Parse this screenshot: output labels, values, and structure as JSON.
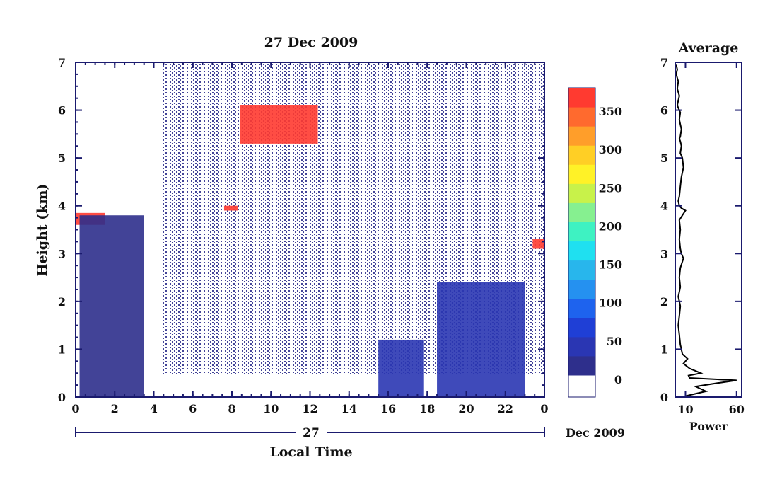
{
  "chart_data": [
    {
      "type": "heatmap",
      "title": "27 Dec 2009",
      "xlabel": "Local Time",
      "ylabel": "Height (km)",
      "x_ticks": [
        "0",
        "2",
        "4",
        "6",
        "8",
        "10",
        "12",
        "14",
        "16",
        "18",
        "20",
        "22",
        "0"
      ],
      "y_ticks": [
        "0",
        "1",
        "2",
        "3",
        "4",
        "5",
        "6",
        "7"
      ],
      "xlim": [
        0,
        24
      ],
      "ylim": [
        0,
        7
      ],
      "date_bar": {
        "day_label": "27",
        "month_label": "Dec 2009"
      },
      "colorbar": {
        "tick_labels": [
          "0",
          "50",
          "100",
          "150",
          "200",
          "250",
          "300",
          "350"
        ],
        "range": [
          0,
          375
        ],
        "colors": [
          "#2e2f8c",
          "#2a36b3",
          "#1f3fd6",
          "#1e63ee",
          "#2591f0",
          "#28b6ec",
          "#1fe0f0",
          "#3ef2c2",
          "#86f090",
          "#c8f24a",
          "#fff227",
          "#ffcf25",
          "#ff9e2a",
          "#ff6a2e",
          "#ff3a30"
        ]
      },
      "features": [
        {
          "desc": "cloud layer",
          "x": [
            0.0,
            1.5
          ],
          "y": [
            3.6,
            3.85
          ],
          "value": 350
        },
        {
          "desc": "cloud layer",
          "x": [
            8.4,
            12.4
          ],
          "y": [
            5.3,
            6.1
          ],
          "value": 350
        },
        {
          "desc": "cloud layer",
          "x": [
            7.6,
            8.3
          ],
          "y": [
            3.9,
            4.0
          ],
          "value": 350
        },
        {
          "desc": "cloud layer",
          "x": [
            23.4,
            24.0
          ],
          "y": [
            3.1,
            3.3
          ],
          "value": 350
        },
        {
          "desc": "boundary layer",
          "x": [
            0.2,
            3.5
          ],
          "y": [
            0.0,
            3.8
          ],
          "value": 20
        },
        {
          "desc": "boundary layer",
          "x": [
            15.5,
            17.8
          ],
          "y": [
            0.0,
            1.2
          ],
          "value": 30
        },
        {
          "desc": "boundary layer",
          "x": [
            18.5,
            23.0
          ],
          "y": [
            0.0,
            2.4
          ],
          "value": 25
        }
      ]
    },
    {
      "type": "line",
      "title": "Average",
      "xlabel": "Power",
      "x_ticks": [
        "10",
        "60"
      ],
      "y_ticks": [
        "0",
        "1",
        "2",
        "3",
        "4",
        "5",
        "6",
        "7"
      ],
      "xlim": [
        0,
        65
      ],
      "ylim": [
        0,
        7
      ],
      "series": [
        {
          "x": [
            1,
            2,
            1,
            3,
            2,
            4,
            3,
            2,
            3,
            5,
            4,
            6,
            5,
            4,
            5,
            6,
            5,
            7,
            8,
            6,
            5,
            4,
            3,
            4,
            6,
            10,
            7,
            4,
            5,
            4,
            5,
            6,
            8,
            5,
            4,
            5,
            3,
            4,
            5,
            4,
            3,
            4,
            5,
            7,
            12,
            8,
            14,
            25,
            13,
            14,
            60,
            44,
            20,
            30,
            10
          ],
          "y": [
            6.95,
            6.85,
            6.75,
            6.6,
            6.45,
            6.3,
            6.2,
            6.1,
            6.05,
            5.95,
            5.8,
            5.6,
            5.45,
            5.4,
            5.35,
            5.25,
            5.1,
            5.0,
            4.8,
            4.6,
            4.4,
            4.2,
            4.1,
            4.0,
            3.95,
            3.9,
            3.8,
            3.7,
            3.5,
            3.3,
            3.1,
            3.0,
            2.9,
            2.7,
            2.5,
            2.3,
            2.1,
            2.0,
            1.9,
            1.7,
            1.5,
            1.3,
            1.1,
            0.9,
            0.8,
            0.7,
            0.6,
            0.5,
            0.45,
            0.4,
            0.35,
            0.3,
            0.22,
            0.12,
            0.02
          ]
        }
      ]
    }
  ]
}
